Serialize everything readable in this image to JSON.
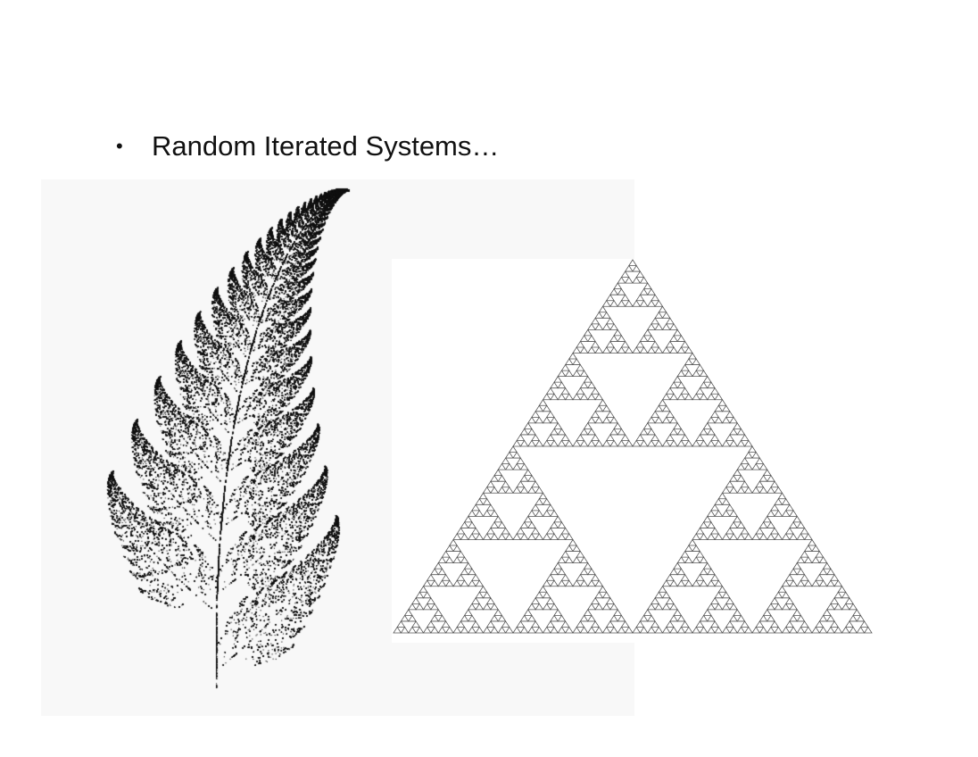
{
  "slide": {
    "bullet_glyph": "•",
    "heading": "Random Iterated Systems…"
  },
  "images": {
    "fern": {
      "icon": "barnsley-fern",
      "color": "#111111"
    },
    "triangle": {
      "icon": "sierpinski-triangle",
      "depth": 6,
      "color": "#555555"
    }
  }
}
